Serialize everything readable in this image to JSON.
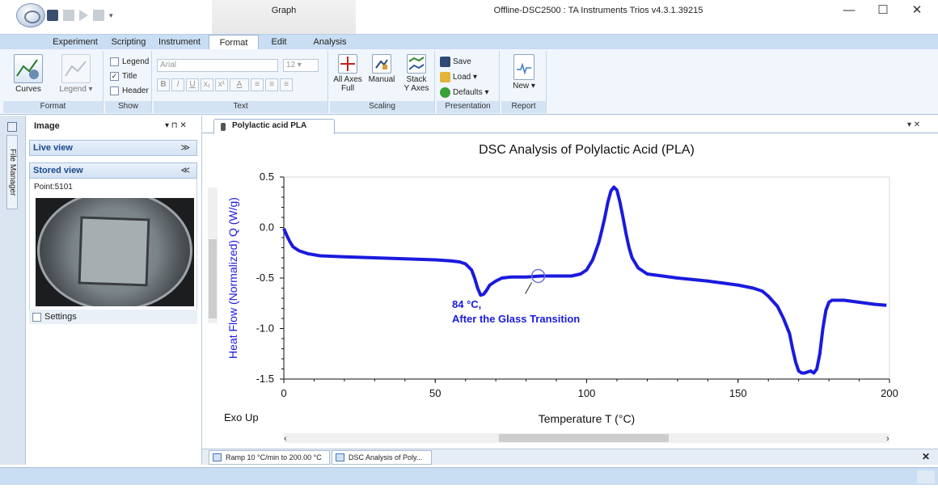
{
  "titlebar": {
    "context_tab": "Graph",
    "window_title": "Offline-DSC2500 : TA Instruments Trios v4.3.1.39215",
    "minimize": "—",
    "maximize": "☐",
    "close": "✕"
  },
  "ribbon_tabs": [
    "Experiment",
    "Scripting",
    "Instrument",
    "Format",
    "Edit",
    "Analysis"
  ],
  "ribbon": {
    "format_group": {
      "label": "Format",
      "curves": "Curves",
      "legend": "Legend ▾"
    },
    "show_group": {
      "label": "Show",
      "legend": "Legend",
      "title": "Title",
      "header": "Header",
      "title_checked": "✓"
    },
    "text_group": {
      "label": "Text",
      "font": "Arial",
      "size": "12",
      "bold": "B",
      "italic": "I",
      "underline": "U",
      "sub": "x₁",
      "sup": "x¹",
      "color": "A"
    },
    "scaling_group": {
      "label": "Scaling",
      "all_axes": "All Axes\nFull",
      "manual": "Manual",
      "stack": "Stack\nY Axes"
    },
    "presentation_group": {
      "label": "Presentation",
      "save": "Save",
      "load": "Load ▾",
      "defaults": "Defaults ▾"
    },
    "report_group": {
      "label": "Report",
      "new": "New ▾"
    }
  },
  "left_strip": {
    "file_manager": "File Manager"
  },
  "image_panel": {
    "title": "Image",
    "pin": "▾ ⊓ ✕",
    "live_view": "Live view",
    "live_chev": "≫",
    "stored_view": "Stored view",
    "stored_chev": "≪",
    "point": "Point:5101",
    "settings": "Settings"
  },
  "document": {
    "tab": "Polylactic acid PLA",
    "ctl": "▾ ✕"
  },
  "bottom_tabs": [
    "Ramp 10 °C/min to 200.00 °C",
    "DSC Analysis of Poly..."
  ],
  "bottom_close": "✕",
  "chart_data": {
    "type": "line",
    "title": "DSC Analysis of Polylactic Acid (PLA)",
    "xlabel": "Temperature T (°C)",
    "ylabel": "Heat Flow (Normalized)  Q (W/g)",
    "xlim": [
      0,
      200
    ],
    "ylim": [
      -1.5,
      0.5
    ],
    "xticks": [
      "0",
      "50",
      "100",
      "150",
      "200"
    ],
    "yticks": [
      "0.5",
      "0.0",
      "-0.5",
      "-1.0",
      "-1.5"
    ],
    "corner_label": "Exo Up",
    "annotation": {
      "line1": "84 °C,",
      "line2": "After the Glass Transition",
      "x": 84,
      "y": -0.48
    },
    "series": [
      {
        "color": "#1a1adf",
        "x": [
          0,
          1,
          2,
          3,
          5,
          8,
          12,
          20,
          30,
          40,
          50,
          55,
          58,
          60,
          62,
          63,
          64,
          65,
          66,
          67,
          68,
          70,
          72,
          75,
          80,
          85,
          90,
          95,
          98,
          100,
          102,
          104,
          105,
          106,
          107,
          108,
          109,
          110,
          111,
          112,
          113,
          114,
          115,
          117,
          120,
          125,
          130,
          140,
          150,
          155,
          158,
          160,
          163,
          165,
          167,
          168,
          169,
          170,
          171,
          172,
          174,
          175,
          176,
          177,
          178,
          179,
          180,
          181,
          182,
          183,
          185,
          190,
          195,
          199
        ],
        "y": [
          -0.01,
          -0.08,
          -0.14,
          -0.19,
          -0.23,
          -0.26,
          -0.28,
          -0.29,
          -0.3,
          -0.31,
          -0.32,
          -0.33,
          -0.34,
          -0.36,
          -0.42,
          -0.5,
          -0.6,
          -0.67,
          -0.66,
          -0.62,
          -0.57,
          -0.53,
          -0.5,
          -0.49,
          -0.49,
          -0.48,
          -0.48,
          -0.48,
          -0.46,
          -0.42,
          -0.32,
          -0.15,
          -0.03,
          0.1,
          0.25,
          0.36,
          0.4,
          0.37,
          0.25,
          0.1,
          -0.06,
          -0.2,
          -0.3,
          -0.4,
          -0.46,
          -0.48,
          -0.5,
          -0.53,
          -0.57,
          -0.6,
          -0.63,
          -0.68,
          -0.78,
          -0.9,
          -1.05,
          -1.2,
          -1.33,
          -1.42,
          -1.44,
          -1.44,
          -1.42,
          -1.44,
          -1.4,
          -1.25,
          -1.0,
          -0.82,
          -0.74,
          -0.72,
          -0.72,
          -0.72,
          -0.72,
          -0.74,
          -0.76,
          -0.77
        ]
      }
    ]
  }
}
